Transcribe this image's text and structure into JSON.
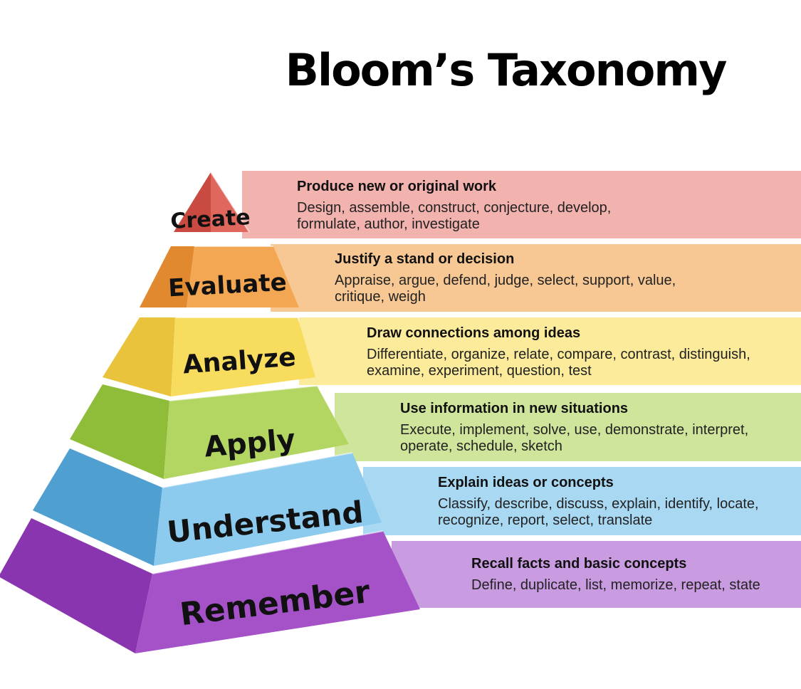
{
  "title": "Bloom’s Taxonomy",
  "levels": [
    {
      "label": "Create",
      "heading": "Produce new or original work",
      "details": [
        "Design, assemble, construct, conjecture, develop,",
        "formulate, author, investigate"
      ],
      "band_color": "#f2b2ae",
      "front_color": "#e0675e",
      "side_color": "#c94a40"
    },
    {
      "label": "Evaluate",
      "heading": "Justify a stand or decision",
      "details": [
        "Appraise, argue, defend, judge, select, support,  value,",
        "critique,  weigh"
      ],
      "band_color": "#f7c894",
      "front_color": "#f3a753",
      "side_color": "#e0892f"
    },
    {
      "label": "Analyze",
      "heading": "Draw connections among ideas",
      "details": [
        "Differentiate, organize, relate, compare, contrast, distinguish,",
        "examine, experiment, question, test"
      ],
      "band_color": "#fbeb9a",
      "front_color": "#f8dc5e",
      "side_color": "#e9c33b"
    },
    {
      "label": "Apply",
      "heading": "Use information in new situations",
      "details": [
        "Execute, implement, solve, use, demonstrate, interpret,",
        "operate, schedule, sketch"
      ],
      "band_color": "#cfe59b",
      "front_color": "#b3d662",
      "side_color": "#8fbd3a"
    },
    {
      "label": "Understand",
      "heading": "Explain ideas or concepts",
      "details": [
        "Classify, describe, discuss, explain, identify, locate,",
        "recognize, report, select, translate"
      ],
      "band_color": "#a9d8f2",
      "front_color": "#8ccbee",
      "side_color": "#4f9fd0"
    },
    {
      "label": "Remember",
      "heading": "Recall facts and basic concepts",
      "details": [
        "Define, duplicate, list, memorize, repeat, state"
      ],
      "band_color": "#c99be0",
      "front_color": "#a552c9",
      "side_color": "#8a35b0"
    }
  ]
}
